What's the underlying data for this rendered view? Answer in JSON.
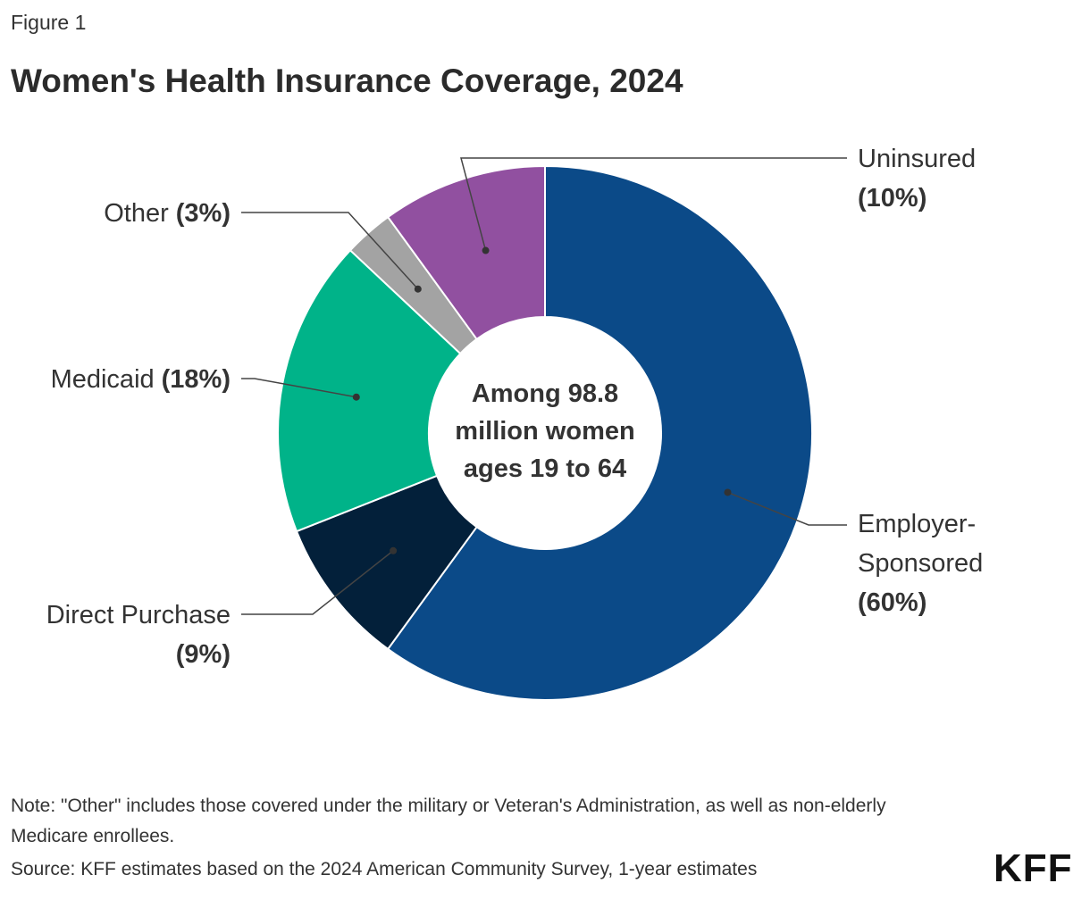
{
  "figure_label": "Figure 1",
  "chart_data": {
    "type": "pie",
    "donut": true,
    "title": "Women's Health Insurance Coverage, 2024",
    "center_label": "Among 98.8 million women ages 19 to 64",
    "categories": [
      "Employer-Sponsored",
      "Direct Purchase",
      "Medicaid",
      "Other",
      "Uninsured"
    ],
    "values": [
      60,
      9,
      18,
      3,
      10
    ],
    "value_labels": [
      "(60%)",
      "(9%)",
      "(18%)",
      "(3%)",
      "(10%)"
    ],
    "colors": [
      "#0b4a88",
      "#03203a",
      "#00b389",
      "#a3a3a3",
      "#9150a0"
    ]
  },
  "note": "Note: \"Other\" includes those covered under the military or Veteran's Administration, as well as non-elderly Medicare enrollees.",
  "source": "Source: KFF estimates based on the 2024 American Community Survey, 1-year estimates",
  "logo": "KFF"
}
